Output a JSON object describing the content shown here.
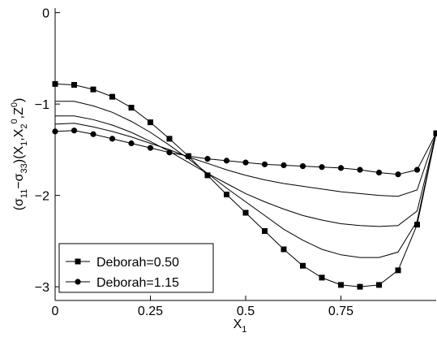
{
  "chart_data": {
    "type": "line",
    "title": "",
    "xlabel": {
      "base": "X",
      "sub": "1"
    },
    "ylabel": {
      "parts": [
        {
          "t": "(σ"
        },
        {
          "t": "11",
          "sub": true
        },
        {
          "t": "−σ"
        },
        {
          "t": "33",
          "sub": true
        },
        {
          "t": ")(X"
        },
        {
          "t": "1",
          "sub": true
        },
        {
          "t": ",X"
        },
        {
          "t": "2",
          "sub": true
        },
        {
          "t": "0",
          "sup": true
        },
        {
          "t": ",Z"
        },
        {
          "t": "0",
          "sup": true
        },
        {
          "t": ")"
        }
      ]
    },
    "xlim": [
      0,
      1
    ],
    "ylim": [
      -3.15,
      0.05
    ],
    "xticks": [
      0,
      0.25,
      0.5,
      0.75
    ],
    "xtick_labels": [
      "0",
      "0.25",
      "0.5",
      "0.75"
    ],
    "yticks": [
      0,
      -1,
      -2,
      -3
    ],
    "ytick_labels": [
      "0",
      "−1",
      "−2",
      "−3"
    ],
    "grid": false,
    "legend_position": "bottom-left",
    "series": [
      {
        "name": "Deborah=0.50",
        "marker": "square",
        "x": [
          0,
          0.05,
          0.1,
          0.15,
          0.2,
          0.25,
          0.3,
          0.35,
          0.4,
          0.45,
          0.5,
          0.55,
          0.6,
          0.65,
          0.7,
          0.75,
          0.8,
          0.85,
          0.9,
          0.95,
          1.0
        ],
        "values": [
          -0.78,
          -0.79,
          -0.84,
          -0.92,
          -1.04,
          -1.2,
          -1.38,
          -1.57,
          -1.78,
          -1.99,
          -2.19,
          -2.39,
          -2.59,
          -2.77,
          -2.9,
          -2.98,
          -3.0,
          -2.98,
          -2.82,
          -2.32,
          -1.32
        ]
      },
      {
        "name": "",
        "marker": "none",
        "x": [
          0,
          0.05,
          0.1,
          0.15,
          0.2,
          0.25,
          0.3,
          0.35,
          0.4,
          0.45,
          0.5,
          0.55,
          0.6,
          0.65,
          0.7,
          0.75,
          0.8,
          0.85,
          0.9,
          0.95,
          1.0
        ],
        "values": [
          -0.97,
          -0.97,
          -1.02,
          -1.09,
          -1.19,
          -1.31,
          -1.45,
          -1.6,
          -1.76,
          -1.92,
          -2.07,
          -2.22,
          -2.37,
          -2.49,
          -2.59,
          -2.65,
          -2.68,
          -2.68,
          -2.62,
          -2.28,
          -1.32
        ]
      },
      {
        "name": "",
        "marker": "none",
        "x": [
          0,
          0.05,
          0.1,
          0.15,
          0.2,
          0.25,
          0.3,
          0.35,
          0.4,
          0.45,
          0.5,
          0.55,
          0.6,
          0.65,
          0.7,
          0.75,
          0.8,
          0.85,
          0.9,
          0.95,
          1.0
        ],
        "values": [
          -1.13,
          -1.13,
          -1.17,
          -1.23,
          -1.31,
          -1.41,
          -1.52,
          -1.64,
          -1.76,
          -1.87,
          -1.98,
          -2.07,
          -2.15,
          -2.22,
          -2.27,
          -2.31,
          -2.33,
          -2.34,
          -2.33,
          -2.17,
          -1.32
        ]
      },
      {
        "name": "",
        "marker": "none",
        "x": [
          0,
          0.05,
          0.1,
          0.15,
          0.2,
          0.25,
          0.3,
          0.35,
          0.4,
          0.45,
          0.5,
          0.55,
          0.6,
          0.65,
          0.7,
          0.75,
          0.8,
          0.85,
          0.9,
          0.95,
          1.0
        ],
        "values": [
          -1.22,
          -1.21,
          -1.25,
          -1.3,
          -1.36,
          -1.43,
          -1.5,
          -1.58,
          -1.65,
          -1.72,
          -1.78,
          -1.83,
          -1.87,
          -1.9,
          -1.93,
          -1.96,
          -1.98,
          -2.0,
          -2.01,
          -1.94,
          -1.32
        ]
      },
      {
        "name": "Deborah=1.15",
        "marker": "circle",
        "x": [
          0,
          0.05,
          0.1,
          0.15,
          0.2,
          0.25,
          0.3,
          0.35,
          0.4,
          0.45,
          0.5,
          0.55,
          0.6,
          0.65,
          0.7,
          0.75,
          0.8,
          0.85,
          0.9,
          0.95,
          1.0
        ],
        "values": [
          -1.3,
          -1.29,
          -1.33,
          -1.38,
          -1.43,
          -1.48,
          -1.53,
          -1.57,
          -1.6,
          -1.62,
          -1.64,
          -1.66,
          -1.67,
          -1.68,
          -1.69,
          -1.7,
          -1.72,
          -1.75,
          -1.77,
          -1.72,
          -1.32
        ]
      }
    ]
  }
}
